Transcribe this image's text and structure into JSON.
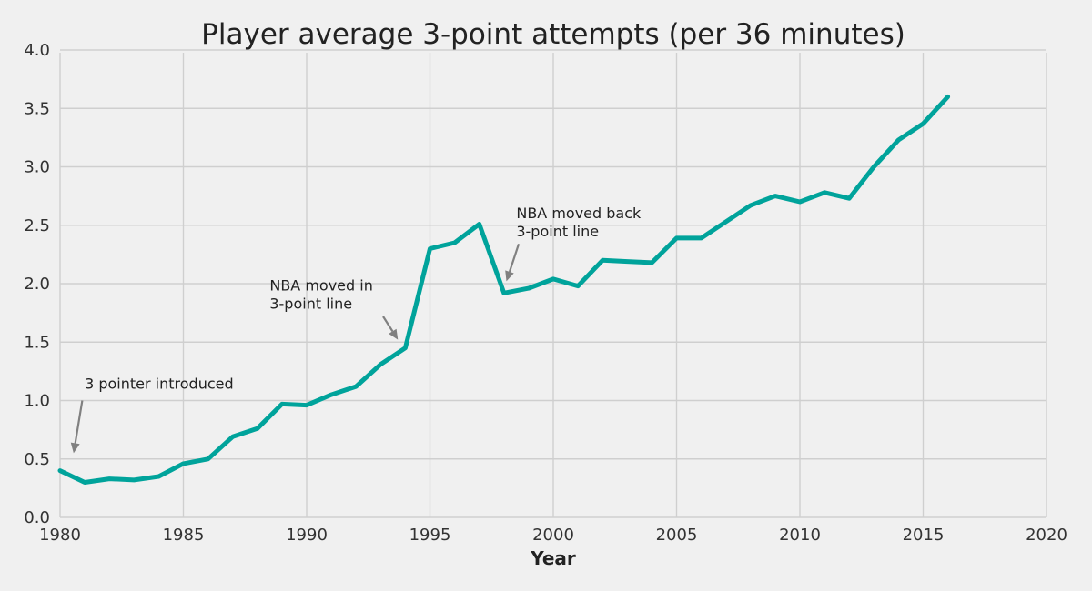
{
  "chart_data": {
    "type": "line",
    "title": "Player average 3-point attempts (per 36 minutes)",
    "xlabel": "Year",
    "ylabel": "",
    "xlim": [
      1980,
      2020
    ],
    "ylim": [
      0,
      4
    ],
    "grid": true,
    "x_ticks": [
      "1980",
      "1985",
      "1990",
      "1995",
      "2000",
      "2005",
      "2010",
      "2015",
      "2020"
    ],
    "y_ticks": [
      "0.0",
      "0.5",
      "1.0",
      "1.5",
      "2.0",
      "2.5",
      "3.0",
      "3.5",
      "4.0"
    ],
    "series": [
      {
        "color": "#00a39b",
        "x": [
          1980,
          1981,
          1982,
          1983,
          1984,
          1985,
          1986,
          1987,
          1988,
          1989,
          1990,
          1991,
          1992,
          1993,
          1994,
          1995,
          1996,
          1997,
          1998,
          1999,
          2000,
          2001,
          2002,
          2003,
          2004,
          2005,
          2006,
          2007,
          2008,
          2009,
          2010,
          2011,
          2012,
          2013,
          2014,
          2015,
          2016
        ],
        "y": [
          0.4,
          0.3,
          0.33,
          0.32,
          0.35,
          0.46,
          0.5,
          0.69,
          0.76,
          0.97,
          0.96,
          1.05,
          1.12,
          1.31,
          1.45,
          2.3,
          2.35,
          2.51,
          1.92,
          1.96,
          2.04,
          1.98,
          2.2,
          2.19,
          2.18,
          2.39,
          2.39,
          2.53,
          2.67,
          2.75,
          2.7,
          2.78,
          2.73,
          3.0,
          3.23,
          3.37,
          3.6
        ]
      }
    ],
    "annotations": [
      {
        "text": "3 pointer introduced",
        "text_x": 1981.0,
        "text_y": 1.1,
        "arrow_from": [
          1980.9,
          1.0
        ],
        "arrow_to": [
          1980.55,
          0.55
        ]
      },
      {
        "text": "NBA moved in\n3-point line",
        "text_x": 1988.5,
        "text_y": 1.94,
        "arrow_from": [
          1993.1,
          1.72
        ],
        "arrow_to": [
          1993.7,
          1.52
        ]
      },
      {
        "text": "NBA moved back\n3-point line",
        "text_x": 1998.5,
        "text_y": 2.56,
        "arrow_from": [
          1998.6,
          2.34
        ],
        "arrow_to": [
          1998.1,
          2.02
        ]
      }
    ]
  }
}
